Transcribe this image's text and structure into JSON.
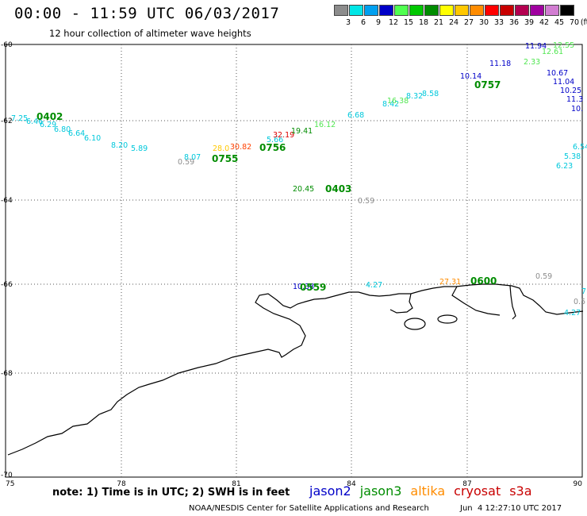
{
  "header": {
    "title": "00:00 - 11:59 UTC 06/03/2017",
    "subtitle": "12 hour collection of altimeter wave heights"
  },
  "legend": {
    "unit": "(ft)",
    "bins": [
      {
        "label": "3",
        "color": "#8c8c8c"
      },
      {
        "label": "6",
        "color": "#00e6e6"
      },
      {
        "label": "9",
        "color": "#00a0f0"
      },
      {
        "label": "12",
        "color": "#0000c8"
      },
      {
        "label": "15",
        "color": "#50ff50"
      },
      {
        "label": "18",
        "color": "#00c800"
      },
      {
        "label": "21",
        "color": "#008c00"
      },
      {
        "label": "24",
        "color": "#ffff00"
      },
      {
        "label": "27",
        "color": "#ffc800"
      },
      {
        "label": "30",
        "color": "#ff8c00"
      },
      {
        "label": "33",
        "color": "#ff0000"
      },
      {
        "label": "36",
        "color": "#c80000"
      },
      {
        "label": "39",
        "color": "#b40050"
      },
      {
        "label": "42",
        "color": "#a000a0"
      },
      {
        "label": "45",
        "color": "#d27dd2"
      },
      {
        "label": "70",
        "color": "#000000"
      }
    ]
  },
  "map": {
    "lat_ticks": [
      "-60",
      "-62",
      "-64",
      "-66",
      "-68",
      "-70"
    ],
    "lon_ticks": [
      "75",
      "78",
      "81",
      "84",
      "87",
      "90"
    ],
    "track_times": [
      {
        "text": "0402",
        "color": "#008c00"
      },
      {
        "text": "0755",
        "color": "#008c00"
      },
      {
        "text": "0756",
        "color": "#008c00"
      },
      {
        "text": "0403",
        "color": "#008c00"
      },
      {
        "text": "0757",
        "color": "#008c00"
      },
      {
        "text": "0559",
        "color": "#008c00"
      },
      {
        "text": "0600",
        "color": "#008c00"
      }
    ],
    "wave_labels": [
      {
        "text": "7.25",
        "color": "#00c8dc"
      },
      {
        "text": "6.46",
        "color": "#00c8dc"
      },
      {
        "text": "6.29",
        "color": "#00c8dc"
      },
      {
        "text": "6.80",
        "color": "#00c8dc"
      },
      {
        "text": "6.64",
        "color": "#00c8dc"
      },
      {
        "text": "6.10",
        "color": "#00c8dc"
      },
      {
        "text": "8.20",
        "color": "#00c8dc"
      },
      {
        "text": "5.89",
        "color": "#00c8dc"
      },
      {
        "text": "0.59",
        "color": "#8c8c8c"
      },
      {
        "text": "8.07",
        "color": "#00c8dc"
      },
      {
        "text": "28.0",
        "color": "#ffc800"
      },
      {
        "text": "30.82",
        "color": "#ff4000"
      },
      {
        "text": "5.66",
        "color": "#00c8dc"
      },
      {
        "text": "32.19",
        "color": "#dc0000"
      },
      {
        "text": "19.41",
        "color": "#008c00"
      },
      {
        "text": "16.12",
        "color": "#50e650"
      },
      {
        "text": "6.68",
        "color": "#00c8dc"
      },
      {
        "text": "8.42",
        "color": "#00c8dc"
      },
      {
        "text": "16.38",
        "color": "#50e650"
      },
      {
        "text": "8.32",
        "color": "#00c8dc"
      },
      {
        "text": "8.58",
        "color": "#00c8dc"
      },
      {
        "text": "10.14",
        "color": "#0000c8"
      },
      {
        "text": "11.18",
        "color": "#0000c8"
      },
      {
        "text": "11.94",
        "color": "#0000c8"
      },
      {
        "text": "12.55",
        "color": "#50e650"
      },
      {
        "text": "12.61",
        "color": "#50e650"
      },
      {
        "text": "2.33",
        "color": "#50e650"
      },
      {
        "text": "10.67",
        "color": "#0000c8"
      },
      {
        "text": "11.04",
        "color": "#0000c8"
      },
      {
        "text": "10.25",
        "color": "#0000c8"
      },
      {
        "text": "11.3",
        "color": "#0000c8"
      },
      {
        "text": "10.",
        "color": "#0000c8"
      },
      {
        "text": "6.54",
        "color": "#00c8dc"
      },
      {
        "text": "5.38",
        "color": "#00c8dc"
      },
      {
        "text": "6.23",
        "color": "#00c8dc"
      },
      {
        "text": "20.45",
        "color": "#008c00"
      },
      {
        "text": "0.59",
        "color": "#8c8c8c"
      },
      {
        "text": "10.38",
        "color": "#0000c8"
      },
      {
        "text": "4.27",
        "color": "#00c8dc"
      },
      {
        "text": "27.31",
        "color": "#ff8c00"
      },
      {
        "text": "0.59",
        "color": "#8c8c8c"
      },
      {
        "text": "4.27",
        "color": "#00c8dc"
      },
      {
        "text": "0.5",
        "color": "#8c8c8c"
      },
      {
        "text": "7",
        "color": "#00c8dc"
      }
    ]
  },
  "footer": {
    "note": "note: 1) Time is in UTC; 2) SWH is in feet",
    "satellites": [
      {
        "name": "jason2",
        "color": "#0000c8"
      },
      {
        "name": "jason3",
        "color": "#008c00"
      },
      {
        "name": "altika",
        "color": "#ff8c00"
      },
      {
        "name": "cryosat",
        "color": "#c80000"
      },
      {
        "name": "s3a",
        "color": "#c80000"
      }
    ],
    "credit": "NOAA/NESDIS Center for Satellite Applications and Research",
    "timestamp": "Jun  4 12:27:10 UTC 2017"
  }
}
